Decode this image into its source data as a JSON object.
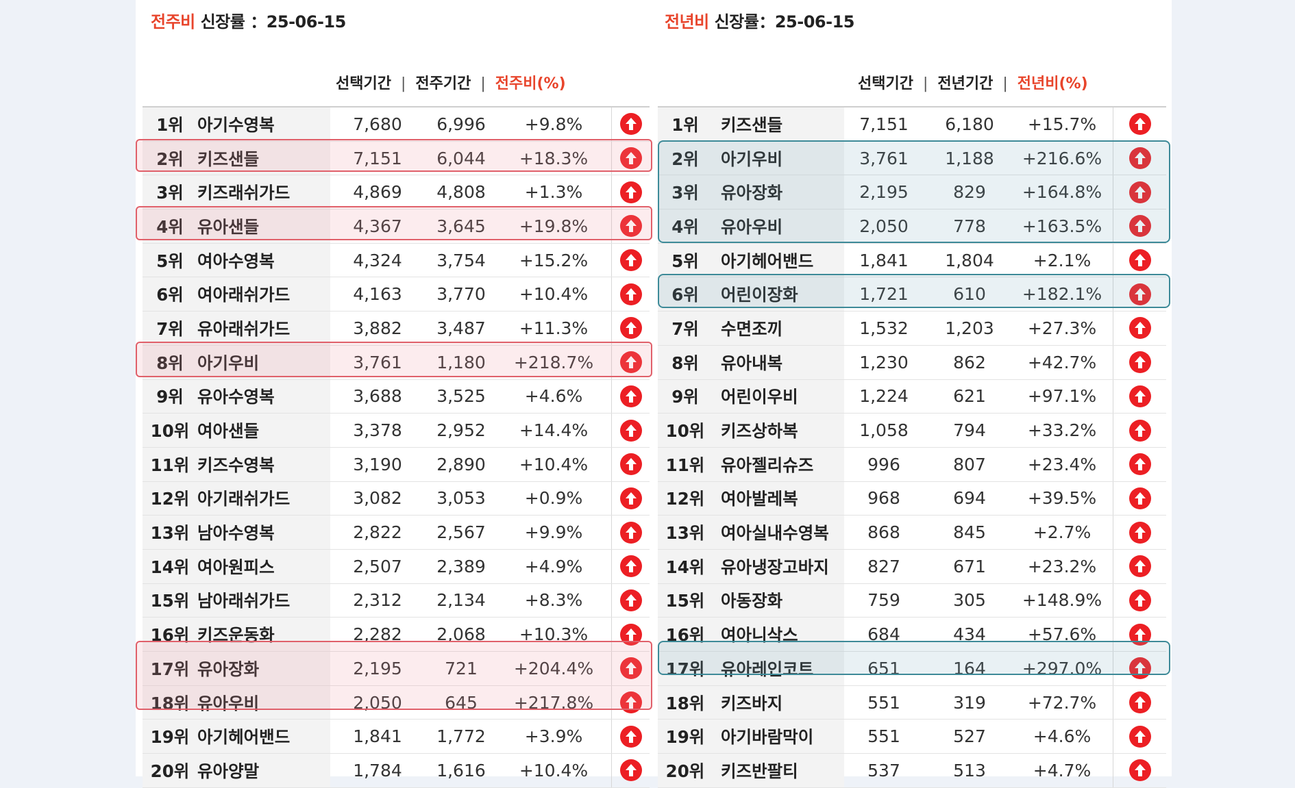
{
  "left": {
    "title_accent": "전주비",
    "title_rest": " 신장률 ：25-06-15",
    "headers": {
      "selected": "선택기간",
      "previous": "전주기간",
      "rate": "전주비(%)"
    },
    "rows": [
      {
        "rank": "1위",
        "name": "아기수영복",
        "selected": "7,680",
        "previous": "6,996",
        "rate": "+9.8%"
      },
      {
        "rank": "2위",
        "name": "키즈샌들",
        "selected": "7,151",
        "previous": "6,044",
        "rate": "+18.3%"
      },
      {
        "rank": "3위",
        "name": "키즈래쉬가드",
        "selected": "4,869",
        "previous": "4,808",
        "rate": "+1.3%"
      },
      {
        "rank": "4위",
        "name": "유아샌들",
        "selected": "4,367",
        "previous": "3,645",
        "rate": "+19.8%"
      },
      {
        "rank": "5위",
        "name": "여아수영복",
        "selected": "4,324",
        "previous": "3,754",
        "rate": "+15.2%"
      },
      {
        "rank": "6위",
        "name": "여아래쉬가드",
        "selected": "4,163",
        "previous": "3,770",
        "rate": "+10.4%"
      },
      {
        "rank": "7위",
        "name": "유아래쉬가드",
        "selected": "3,882",
        "previous": "3,487",
        "rate": "+11.3%"
      },
      {
        "rank": "8위",
        "name": "아기우비",
        "selected": "3,761",
        "previous": "1,180",
        "rate": "+218.7%"
      },
      {
        "rank": "9위",
        "name": "유아수영복",
        "selected": "3,688",
        "previous": "3,525",
        "rate": "+4.6%"
      },
      {
        "rank": "10위",
        "name": "여아샌들",
        "selected": "3,378",
        "previous": "2,952",
        "rate": "+14.4%"
      },
      {
        "rank": "11위",
        "name": "키즈수영복",
        "selected": "3,190",
        "previous": "2,890",
        "rate": "+10.4%"
      },
      {
        "rank": "12위",
        "name": "아기래쉬가드",
        "selected": "3,082",
        "previous": "3,053",
        "rate": "+0.9%"
      },
      {
        "rank": "13위",
        "name": "남아수영복",
        "selected": "2,822",
        "previous": "2,567",
        "rate": "+9.9%"
      },
      {
        "rank": "14위",
        "name": "여아원피스",
        "selected": "2,507",
        "previous": "2,389",
        "rate": "+4.9%"
      },
      {
        "rank": "15위",
        "name": "남아래쉬가드",
        "selected": "2,312",
        "previous": "2,134",
        "rate": "+8.3%"
      },
      {
        "rank": "16위",
        "name": "키즈운동화",
        "selected": "2,282",
        "previous": "2,068",
        "rate": "+10.3%"
      },
      {
        "rank": "17위",
        "name": "유아장화",
        "selected": "2,195",
        "previous": "721",
        "rate": "+204.4%"
      },
      {
        "rank": "18위",
        "name": "유아우비",
        "selected": "2,050",
        "previous": "645",
        "rate": "+217.8%"
      },
      {
        "rank": "19위",
        "name": "아기헤어밴드",
        "selected": "1,841",
        "previous": "1,772",
        "rate": "+3.9%"
      },
      {
        "rank": "20위",
        "name": "유아양말",
        "selected": "1,784",
        "previous": "1,616",
        "rate": "+10.4%"
      }
    ]
  },
  "right": {
    "title_accent": "전년비",
    "title_rest": " 신장률：25-06-15",
    "headers": {
      "selected": "선택기간",
      "previous": "전년기간",
      "rate": "전년비(%)"
    },
    "rows": [
      {
        "rank": "1위",
        "name": "키즈샌들",
        "selected": "7,151",
        "previous": "6,180",
        "rate": "+15.7%"
      },
      {
        "rank": "2위",
        "name": "아기우비",
        "selected": "3,761",
        "previous": "1,188",
        "rate": "+216.6%"
      },
      {
        "rank": "3위",
        "name": "유아장화",
        "selected": "2,195",
        "previous": "829",
        "rate": "+164.8%"
      },
      {
        "rank": "4위",
        "name": "유아우비",
        "selected": "2,050",
        "previous": "778",
        "rate": "+163.5%"
      },
      {
        "rank": "5위",
        "name": "아기헤어밴드",
        "selected": "1,841",
        "previous": "1,804",
        "rate": "+2.1%"
      },
      {
        "rank": "6위",
        "name": "어린이장화",
        "selected": "1,721",
        "previous": "610",
        "rate": "+182.1%"
      },
      {
        "rank": "7위",
        "name": "수면조끼",
        "selected": "1,532",
        "previous": "1,203",
        "rate": "+27.3%"
      },
      {
        "rank": "8위",
        "name": "유아내복",
        "selected": "1,230",
        "previous": "862",
        "rate": "+42.7%"
      },
      {
        "rank": "9위",
        "name": "어린이우비",
        "selected": "1,224",
        "previous": "621",
        "rate": "+97.1%"
      },
      {
        "rank": "10위",
        "name": "키즈상하복",
        "selected": "1,058",
        "previous": "794",
        "rate": "+33.2%"
      },
      {
        "rank": "11위",
        "name": "유아젤리슈즈",
        "selected": "996",
        "previous": "807",
        "rate": "+23.4%"
      },
      {
        "rank": "12위",
        "name": "여아발레복",
        "selected": "968",
        "previous": "694",
        "rate": "+39.5%"
      },
      {
        "rank": "13위",
        "name": "여아실내수영복",
        "selected": "868",
        "previous": "845",
        "rate": "+2.7%"
      },
      {
        "rank": "14위",
        "name": "유아냉장고바지",
        "selected": "827",
        "previous": "671",
        "rate": "+23.2%"
      },
      {
        "rank": "15위",
        "name": "아동장화",
        "selected": "759",
        "previous": "305",
        "rate": "+148.9%"
      },
      {
        "rank": "16위",
        "name": "여아니삭스",
        "selected": "684",
        "previous": "434",
        "rate": "+57.6%"
      },
      {
        "rank": "17위",
        "name": "유아레인코트",
        "selected": "651",
        "previous": "164",
        "rate": "+297.0%"
      },
      {
        "rank": "18위",
        "name": "키즈바지",
        "selected": "551",
        "previous": "319",
        "rate": "+72.7%"
      },
      {
        "rank": "19위",
        "name": "아기바람막이",
        "selected": "551",
        "previous": "527",
        "rate": "+4.6%"
      },
      {
        "rank": "20위",
        "name": "키즈반팔티",
        "selected": "537",
        "previous": "513",
        "rate": "+4.7%"
      }
    ]
  },
  "icons": {
    "row_trend": "up-arrow-circle-icon"
  },
  "colors": {
    "accent": "#e8452c",
    "arrow": "#ec1f24",
    "highlight_left": "#e0606a",
    "highlight_right": "#3d8a98"
  }
}
